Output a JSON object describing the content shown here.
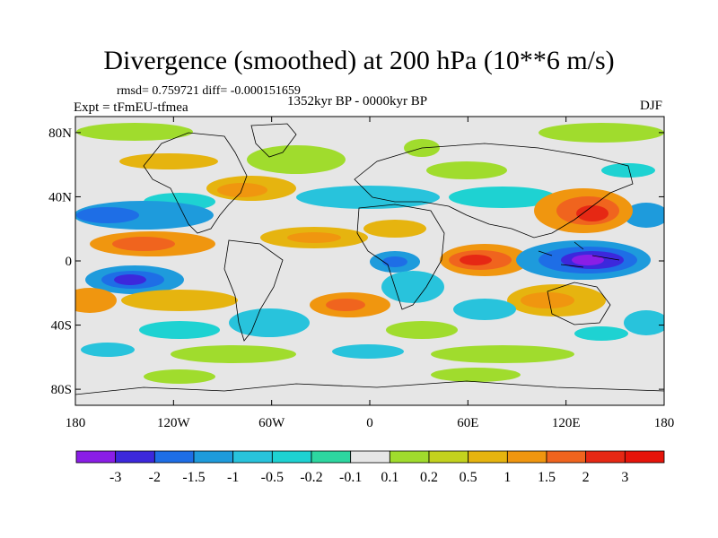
{
  "chart_data": {
    "type": "heatmap",
    "title": "Divergence (smoothed) at 200 hPa (10**6 m/s)",
    "stats": "rmsd= 0.759721  diff= -0.000151659",
    "experiment": "Expt = tFmEU-tfmea",
    "period": "1352kyr BP - 0000kyr BP",
    "season": "DJF",
    "x_ticks": [
      "180",
      "120W",
      "60W",
      "0",
      "60E",
      "120E",
      "180"
    ],
    "y_ticks": [
      "80N",
      "40N",
      "0",
      "40S",
      "80S"
    ],
    "xlim": [
      -180,
      180
    ],
    "ylim": [
      -90,
      90
    ],
    "colorbar_labels": [
      "-3",
      "-2",
      "-1.5",
      "-1",
      "-0.5",
      "-0.2",
      "-0.1",
      "0.1",
      "0.2",
      "0.5",
      "1",
      "1.5",
      "2",
      "3"
    ],
    "colorbar_colors": [
      "#8a1ee6",
      "#3c28dc",
      "#1e6ee6",
      "#1e9bdc",
      "#28c3dc",
      "#1ed2d2",
      "#2dd7a0",
      "#e6e6e6",
      "#a0dc2d",
      "#c3d21e",
      "#e6b40f",
      "#f0960f",
      "#f0641e",
      "#e62814",
      "#e6140a"
    ]
  }
}
